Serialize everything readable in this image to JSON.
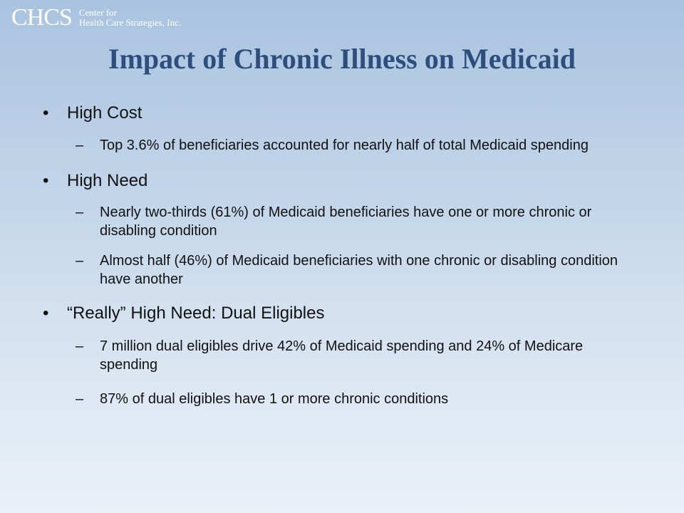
{
  "logo": {
    "mark": "CHCS",
    "line1": "Center for",
    "line2": "Health Care Strategies, Inc."
  },
  "title": "Impact of Chronic Illness on Medicaid",
  "bullet_symbol": "•",
  "dash_symbol": "–",
  "sections": [
    {
      "heading": "High Cost",
      "items": [
        "Top 3.6% of beneficiaries accounted for nearly half of total Medicaid spending"
      ]
    },
    {
      "heading": "High Need",
      "items": [
        "Nearly two-thirds (61%) of Medicaid beneficiaries have one or more chronic or disabling condition",
        "Almost half (46%) of Medicaid beneficiaries with one chronic or disabling condition have another"
      ]
    },
    {
      "heading": "“Really” High Need: Dual Eligibles",
      "items": [
        "7 million dual eligibles drive 42% of Medicaid spending and 24% of Medicare spending",
        "87% of dual eligibles have 1 or more chronic conditions"
      ]
    }
  ]
}
